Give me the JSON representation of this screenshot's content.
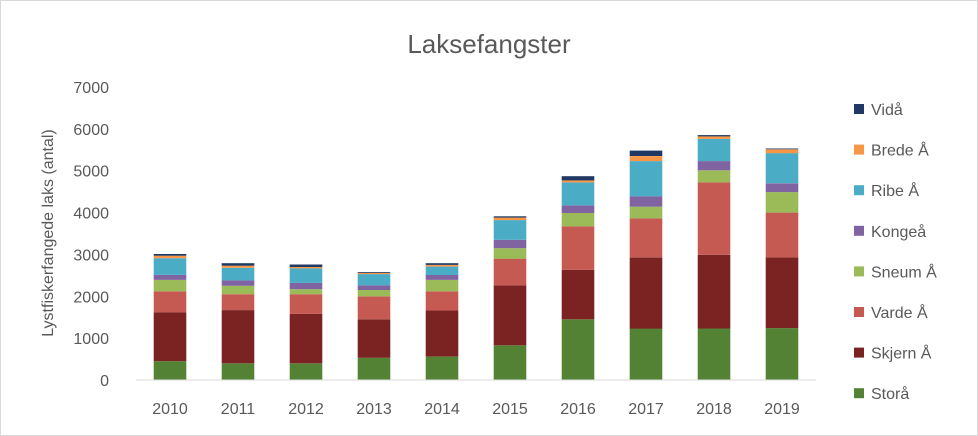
{
  "chart_data": {
    "type": "bar",
    "stacked": true,
    "title": "Laksefangster",
    "xlabel": "",
    "ylabel": "Lystfiskerfangede laks (antal)",
    "ylim": [
      0,
      7000
    ],
    "yticks": [
      0,
      1000,
      2000,
      3000,
      4000,
      5000,
      6000,
      7000
    ],
    "grid": false,
    "legend_position": "right",
    "categories": [
      "2010",
      "2011",
      "2012",
      "2013",
      "2014",
      "2015",
      "2016",
      "2017",
      "2018",
      "2019"
    ],
    "series": [
      {
        "name": "Storå",
        "color": "#548235",
        "values": [
          450,
          400,
          400,
          530,
          560,
          830,
          1450,
          1230,
          1230,
          1240
        ]
      },
      {
        "name": "Skjern Å",
        "color": "#7b2322",
        "values": [
          1170,
          1270,
          1180,
          920,
          1100,
          1430,
          1180,
          1700,
          1760,
          1690
        ]
      },
      {
        "name": "Varde Å",
        "color": "#c55a53",
        "values": [
          500,
          380,
          470,
          550,
          460,
          640,
          1040,
          930,
          1730,
          1070
        ]
      },
      {
        "name": "Sneum Å",
        "color": "#9bbb59",
        "values": [
          270,
          200,
          120,
          150,
          270,
          250,
          320,
          280,
          290,
          490
        ]
      },
      {
        "name": "Kongeå",
        "color": "#8064a2",
        "values": [
          120,
          130,
          150,
          110,
          120,
          200,
          180,
          250,
          220,
          210
        ]
      },
      {
        "name": "Ribe Å",
        "color": "#4bacc6",
        "values": [
          400,
          300,
          350,
          270,
          200,
          470,
          550,
          840,
          530,
          720
        ]
      },
      {
        "name": "Brede Å",
        "color": "#f79646",
        "values": [
          60,
          50,
          30,
          30,
          40,
          60,
          50,
          120,
          60,
          90
        ]
      },
      {
        "name": "Vidå",
        "color": "#1f3864",
        "values": [
          40,
          60,
          60,
          20,
          40,
          30,
          100,
          130,
          30,
          20
        ]
      }
    ]
  }
}
